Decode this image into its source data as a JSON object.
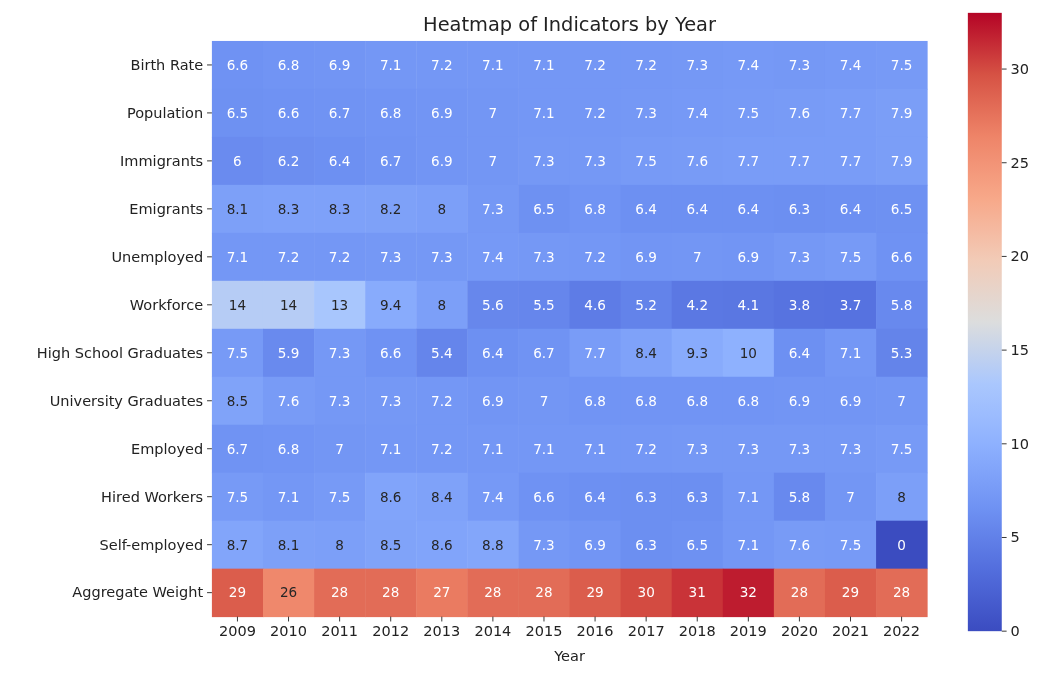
{
  "chart_data": {
    "type": "heatmap",
    "title": "Heatmap of Indicators by Year",
    "xlabel": "Year",
    "categories": [
      "2009",
      "2010",
      "2011",
      "2012",
      "2013",
      "2014",
      "2015",
      "2016",
      "2017",
      "2018",
      "2019",
      "2020",
      "2021",
      "2022"
    ],
    "y_categories": [
      "Birth Rate",
      "Population",
      "Immigrants",
      "Emigrants",
      "Unemployed",
      "Workforce",
      "High School Graduates",
      "University Graduates",
      "Employed",
      "Hired Workers",
      "Self-employed",
      "Aggregate Weight"
    ],
    "cells": [
      [
        6.6,
        6.8,
        6.9,
        7.1,
        7.2,
        7.1,
        7.1,
        7.2,
        7.2,
        7.3,
        7.4,
        7.3,
        7.4,
        7.5
      ],
      [
        6.5,
        6.6,
        6.7,
        6.8,
        6.9,
        7,
        7.1,
        7.2,
        7.3,
        7.4,
        7.5,
        7.6,
        7.7,
        7.9
      ],
      [
        6,
        6.2,
        6.4,
        6.7,
        6.9,
        7,
        7.3,
        7.3,
        7.5,
        7.6,
        7.7,
        7.7,
        7.7,
        7.9
      ],
      [
        8.1,
        8.3,
        8.3,
        8.2,
        8,
        7.3,
        6.5,
        6.8,
        6.4,
        6.4,
        6.4,
        6.3,
        6.4,
        6.5
      ],
      [
        7.1,
        7.2,
        7.2,
        7.3,
        7.3,
        7.4,
        7.3,
        7.2,
        6.9,
        7,
        6.9,
        7.3,
        7.5,
        6.6
      ],
      [
        14,
        14,
        13,
        9.4,
        8,
        5.6,
        5.5,
        4.6,
        5.2,
        4.2,
        4.1,
        3.8,
        3.7,
        5.8
      ],
      [
        7.5,
        5.9,
        7.3,
        6.6,
        5.4,
        6.4,
        6.7,
        7.7,
        8.4,
        9.3,
        10,
        6.4,
        7.1,
        5.3
      ],
      [
        8.5,
        7.6,
        7.3,
        7.3,
        7.2,
        6.9,
        7,
        6.8,
        6.8,
        6.8,
        6.8,
        6.9,
        6.9,
        7
      ],
      [
        6.7,
        6.8,
        7,
        7.1,
        7.2,
        7.1,
        7.1,
        7.1,
        7.2,
        7.3,
        7.3,
        7.3,
        7.3,
        7.5
      ],
      [
        7.5,
        7.1,
        7.5,
        8.6,
        8.4,
        7.4,
        6.6,
        6.4,
        6.3,
        6.3,
        7.1,
        5.8,
        7,
        8
      ],
      [
        8.7,
        8.1,
        8,
        8.5,
        8.6,
        8.8,
        7.3,
        6.9,
        6.3,
        6.5,
        7.1,
        7.6,
        7.5,
        0
      ],
      [
        29,
        26,
        28,
        28,
        27,
        28,
        28,
        29,
        30,
        31,
        32,
        28,
        29,
        28
      ]
    ],
    "clim": [
      0,
      33
    ],
    "cticks": [
      0,
      5,
      10,
      15,
      20,
      25,
      30
    ],
    "data_labels": true
  }
}
